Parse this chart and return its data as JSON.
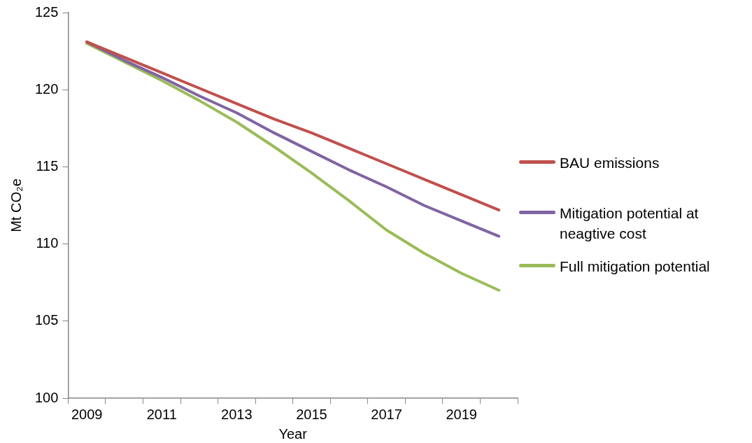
{
  "chart_data": {
    "type": "line",
    "xlabel": "Year",
    "ylabel": "Mt CO₂e",
    "categories": [
      "2009",
      null,
      "2011",
      null,
      "2013",
      null,
      "2015",
      null,
      "2017",
      null,
      "2019",
      null
    ],
    "ylim": [
      100,
      125
    ],
    "yticks": [
      100,
      105,
      110,
      115,
      120,
      125
    ],
    "grid": false,
    "legend": "right",
    "marker": "none",
    "line_style": "solid",
    "series": [
      {
        "name": "BAU emissions",
        "color": "#c0504d",
        "values": [
          123.1,
          122.1,
          121.1,
          120.1,
          119.1,
          118.1,
          117.2,
          116.2,
          115.2,
          114.2,
          113.2,
          112.2
        ]
      },
      {
        "name": "Mitigation potential at neagtive cost",
        "color": "#8064a2",
        "values": [
          123.1,
          121.9,
          120.8,
          119.6,
          118.5,
          117.2,
          116.0,
          114.8,
          113.7,
          112.5,
          111.5,
          110.5
        ]
      },
      {
        "name": "Full mitigation potential",
        "color": "#9bbb59",
        "values": [
          123.0,
          121.8,
          120.6,
          119.3,
          117.9,
          116.3,
          114.6,
          112.8,
          110.9,
          109.4,
          108.1,
          107.0
        ]
      }
    ]
  }
}
